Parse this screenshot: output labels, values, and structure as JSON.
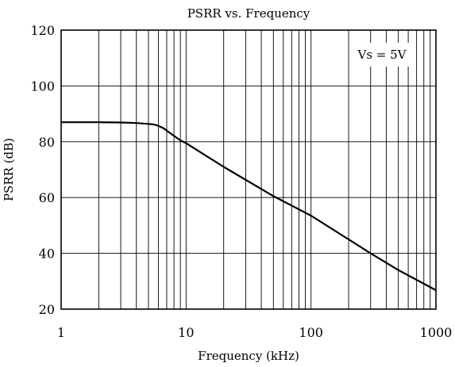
{
  "chart_data": {
    "type": "line",
    "title": "PSRR vs. Frequency",
    "xlabel": "Frequency (kHz)",
    "ylabel": "PSRR (dB)",
    "x_scale": "log",
    "xlim": [
      1,
      1000
    ],
    "ylim": [
      20,
      120
    ],
    "x_ticks": [
      1,
      10,
      100,
      1000
    ],
    "x_tick_labels": [
      "1",
      "10",
      "100",
      "1000"
    ],
    "y_ticks": [
      20,
      40,
      60,
      80,
      100,
      120
    ],
    "y_tick_labels": [
      "20",
      "40",
      "60",
      "80",
      "100",
      "120"
    ],
    "grid": true,
    "annotation": "Vs = 5V",
    "series": [
      {
        "x": [
          1,
          2,
          3,
          4,
          5,
          5.5,
          6,
          6.5,
          7,
          7.5,
          8,
          9,
          10,
          20,
          50,
          100,
          200,
          300,
          500,
          700,
          1000
        ],
        "y": [
          87,
          87,
          86.9,
          86.7,
          86.4,
          86.2,
          85.7,
          85,
          84,
          83,
          82.1,
          80.5,
          79.5,
          71,
          60.5,
          53.5,
          45,
          40,
          34,
          30.5,
          26.8
        ]
      }
    ]
  }
}
